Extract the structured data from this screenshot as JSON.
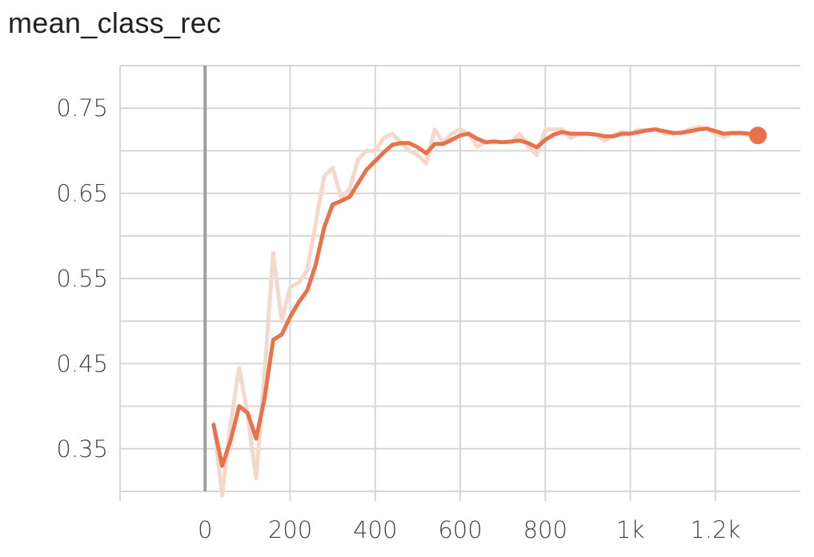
{
  "title": "mean_class_rec",
  "chart_data": {
    "type": "line",
    "title": "mean_class_rec",
    "xlabel": "",
    "ylabel": "",
    "xlim": [
      -200,
      1400
    ],
    "ylim": [
      0.3,
      0.8
    ],
    "x_ticks": [
      0,
      200,
      400,
      600,
      800,
      1000,
      1200
    ],
    "x_tick_labels": [
      "0",
      "200",
      "400",
      "600",
      "800",
      "1k",
      "1.2k"
    ],
    "y_ticks": [
      0.35,
      0.45,
      0.55,
      0.65,
      0.75
    ],
    "y_tick_labels": [
      "0.35",
      "0.45",
      "0.55",
      "0.65",
      "0.75"
    ],
    "grid": true,
    "colors": {
      "smoothed": "#e8734a",
      "raw": "#f6d8cb",
      "zero_line": "#9e9e9e"
    },
    "series": [
      {
        "role": "raw",
        "x": [
          20,
          40,
          60,
          80,
          100,
          120,
          140,
          160,
          180,
          200,
          220,
          240,
          260,
          280,
          300,
          320,
          340,
          360,
          380,
          400,
          420,
          440,
          460,
          480,
          500,
          520,
          540,
          560,
          580,
          600,
          620,
          640,
          660,
          680,
          700,
          720,
          740,
          760,
          780,
          800,
          820,
          840,
          860,
          880,
          900,
          920,
          940,
          960,
          980,
          1000,
          1020,
          1040,
          1060,
          1080,
          1100,
          1120,
          1140,
          1160,
          1180,
          1200,
          1220,
          1240,
          1260,
          1280,
          1300
        ],
        "y": [
          0.38,
          0.295,
          0.38,
          0.445,
          0.39,
          0.315,
          0.44,
          0.58,
          0.5,
          0.54,
          0.545,
          0.56,
          0.615,
          0.67,
          0.68,
          0.645,
          0.655,
          0.69,
          0.7,
          0.7,
          0.715,
          0.72,
          0.71,
          0.7,
          0.695,
          0.685,
          0.725,
          0.71,
          0.72,
          0.725,
          0.72,
          0.705,
          0.71,
          0.71,
          0.71,
          0.71,
          0.72,
          0.705,
          0.695,
          0.725,
          0.725,
          0.725,
          0.715,
          0.72,
          0.72,
          0.718,
          0.712,
          0.718,
          0.722,
          0.72,
          0.725,
          0.724,
          0.726,
          0.72,
          0.72,
          0.722,
          0.725,
          0.728,
          0.726,
          0.72,
          0.716,
          0.72,
          0.72,
          0.718,
          0.716
        ]
      },
      {
        "role": "smoothed",
        "x": [
          20,
          40,
          60,
          80,
          100,
          120,
          140,
          160,
          180,
          200,
          220,
          240,
          260,
          280,
          300,
          320,
          340,
          360,
          380,
          400,
          420,
          440,
          460,
          480,
          500,
          520,
          540,
          560,
          580,
          600,
          620,
          640,
          660,
          680,
          700,
          720,
          740,
          760,
          780,
          800,
          820,
          840,
          860,
          880,
          900,
          920,
          940,
          960,
          980,
          1000,
          1020,
          1040,
          1060,
          1080,
          1100,
          1120,
          1140,
          1160,
          1180,
          1200,
          1220,
          1240,
          1260,
          1280,
          1300
        ],
        "y": [
          0.378,
          0.33,
          0.36,
          0.4,
          0.392,
          0.362,
          0.41,
          0.478,
          0.484,
          0.505,
          0.522,
          0.536,
          0.566,
          0.61,
          0.637,
          0.641,
          0.646,
          0.662,
          0.678,
          0.688,
          0.698,
          0.707,
          0.709,
          0.709,
          0.704,
          0.697,
          0.708,
          0.708,
          0.713,
          0.718,
          0.72,
          0.714,
          0.71,
          0.711,
          0.71,
          0.711,
          0.712,
          0.709,
          0.704,
          0.713,
          0.719,
          0.722,
          0.72,
          0.72,
          0.72,
          0.719,
          0.717,
          0.717,
          0.72,
          0.72,
          0.722,
          0.724,
          0.725,
          0.723,
          0.721,
          0.721,
          0.723,
          0.725,
          0.726,
          0.723,
          0.72,
          0.721,
          0.721,
          0.72,
          0.718
        ]
      }
    ]
  }
}
